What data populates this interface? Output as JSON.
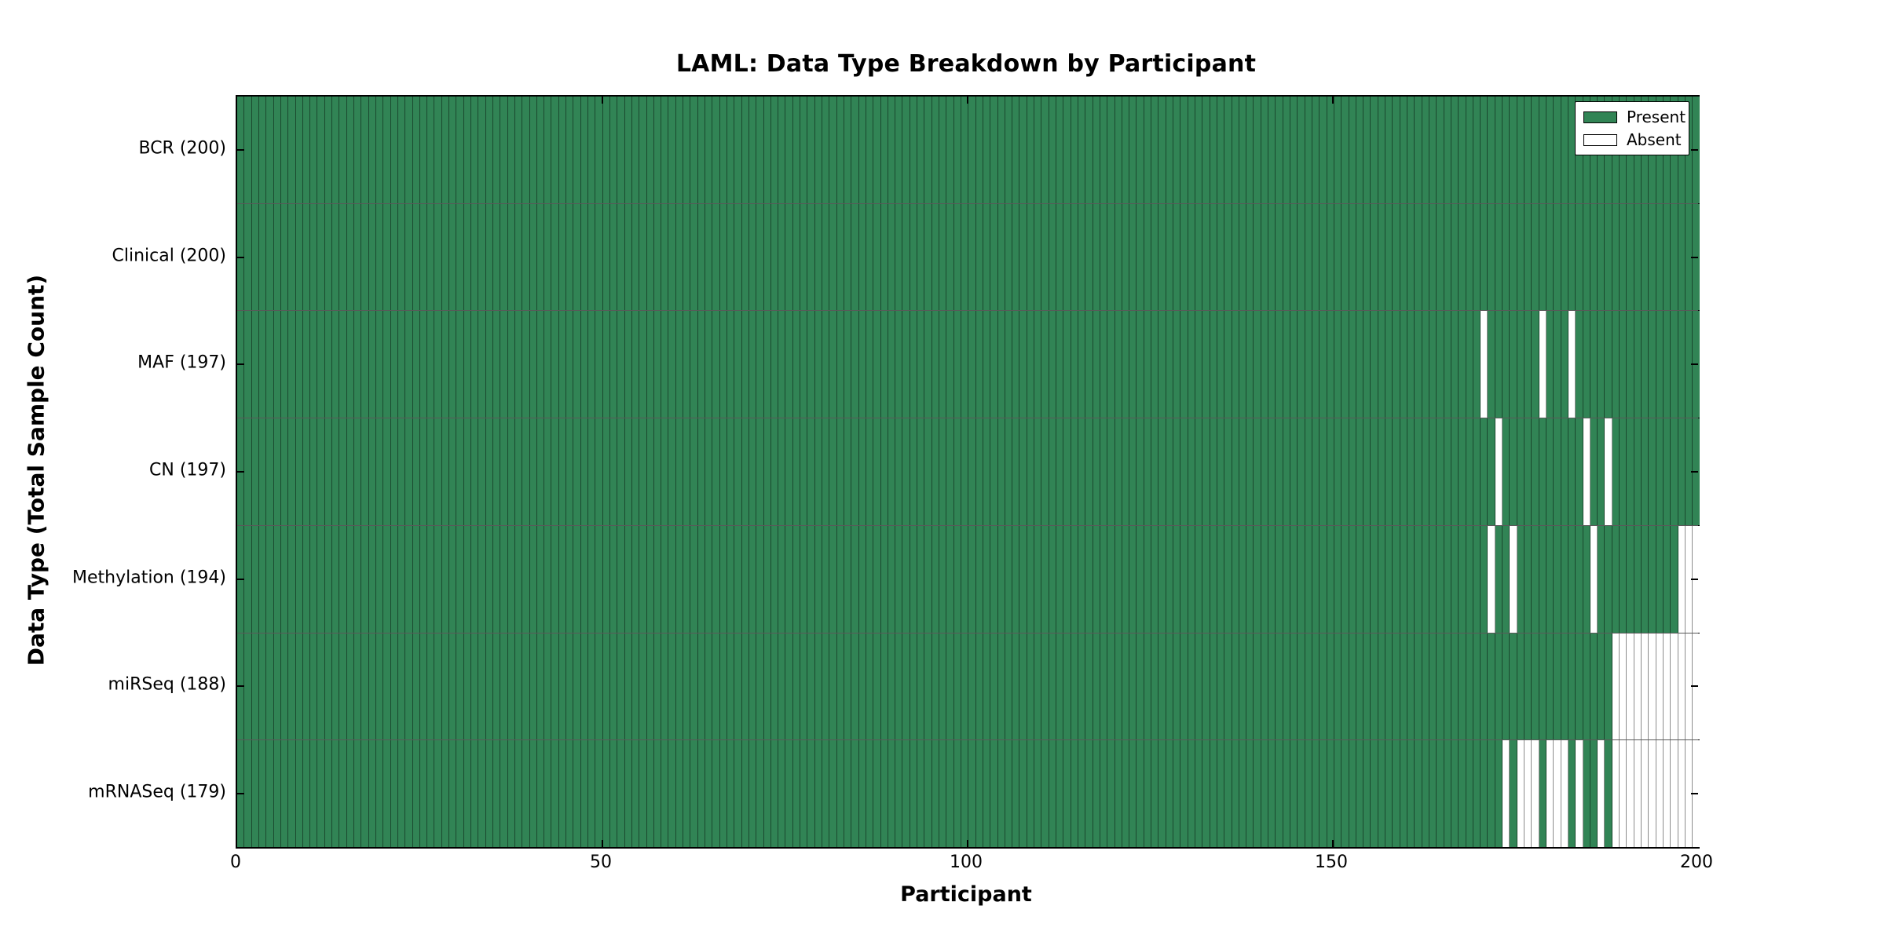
{
  "chart_data": {
    "type": "heatmap",
    "title": "LAML: Data Type Breakdown by Participant",
    "xlabel": "Participant",
    "ylabel": "Data Type (Total Sample Count)",
    "n_participants": 200,
    "x_ticks": [
      0,
      50,
      100,
      150,
      200
    ],
    "x_range": [
      0,
      200
    ],
    "grid": false,
    "legend_position": "upper right",
    "legend": [
      {
        "label": "Present",
        "state": "present"
      },
      {
        "label": "Absent",
        "state": "absent"
      }
    ],
    "colors": {
      "present": "#318455",
      "absent": "#ffffff",
      "edge_line": "rgba(0,0,0,0.45)",
      "row_line": "rgba(0,0,0,0.65)",
      "axis": "#000000"
    },
    "rows": [
      {
        "label": "BCR (200)",
        "data_type": "BCR",
        "total": 200,
        "absent_participants": []
      },
      {
        "label": "Clinical (200)",
        "data_type": "Clinical",
        "total": 200,
        "absent_participants": []
      },
      {
        "label": "MAF (197)",
        "data_type": "MAF",
        "total": 197,
        "absent_participants": [
          170,
          178,
          182
        ]
      },
      {
        "label": "CN (197)",
        "data_type": "CN",
        "total": 197,
        "absent_participants": [
          172,
          184,
          187
        ]
      },
      {
        "label": "Methylation (194)",
        "data_type": "Methylation",
        "total": 194,
        "absent_participants": [
          171,
          174,
          185,
          197,
          198,
          199
        ]
      },
      {
        "label": "miRSeq (188)",
        "data_type": "miRSeq",
        "total": 188,
        "absent_participants": [
          188,
          189,
          190,
          191,
          192,
          193,
          194,
          195,
          196,
          197,
          198,
          199
        ]
      },
      {
        "label": "mRNASeq (179)",
        "data_type": "mRNASeq",
        "total": 179,
        "absent_participants": [
          173,
          175,
          176,
          177,
          179,
          180,
          181,
          183,
          186,
          188,
          189,
          190,
          191,
          192,
          193,
          194,
          195,
          196,
          197,
          198,
          199
        ]
      }
    ]
  }
}
